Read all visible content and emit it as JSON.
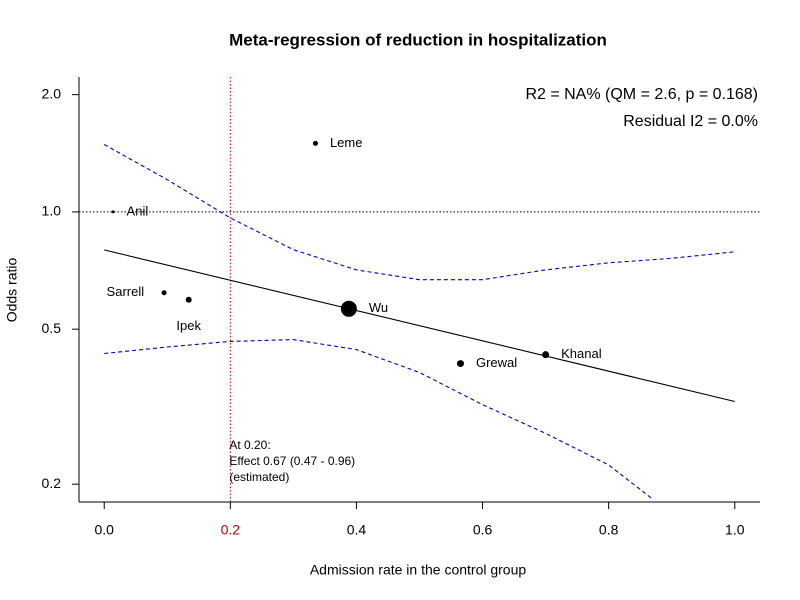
{
  "chart_data": {
    "type": "scatter",
    "title": "Meta-regression of reduction in hospitalization",
    "x_label": "Admission rate in the control group",
    "y_label": "Odds ratio",
    "log_y": true,
    "xlim": [
      -0.04,
      1.04
    ],
    "ylim": [
      0.18,
      2.22
    ],
    "xticks": [
      {
        "value": 0,
        "label": "0.0"
      },
      0.2,
      0.4,
      0.6,
      0.8,
      {
        "value": 1,
        "label": "1.0"
      }
    ],
    "yticks": [
      0.2,
      0.5,
      {
        "value": 1,
        "label": "1.0"
      },
      {
        "value": 2,
        "label": "2.0"
      }
    ],
    "highlight_xtick": 0.2,
    "highlight_color": "#cc0000",
    "points": {
      "labels": [
        "Leme",
        "Anil",
        "Sarrell",
        "Ipek",
        "Wu",
        "Grewal",
        "Khanal"
      ],
      "x": [
        0.335,
        0.014,
        0.095,
        0.134,
        0.388,
        0.565,
        0.7
      ],
      "values": [
        1.5,
        1.0,
        0.62,
        0.595,
        0.564,
        0.408,
        0.43
      ],
      "sizes": [
        2.5,
        1.5,
        2.5,
        3,
        8,
        3.5,
        3.5
      ],
      "label_side": [
        "right",
        "right",
        "left",
        "below",
        "right",
        "right",
        "right"
      ],
      "color": "#000000"
    },
    "fit": {
      "x": [
        0,
        1
      ],
      "values": [
        0.799,
        0.326
      ],
      "color": "#000000"
    },
    "ci_upper": {
      "x": [
        0,
        0.1,
        0.2,
        0.3,
        0.4,
        0.5,
        0.6,
        0.7,
        0.8,
        0.9,
        1.0
      ],
      "values": [
        1.49,
        1.21,
        0.965,
        0.8,
        0.71,
        0.67,
        0.67,
        0.71,
        0.74,
        0.76,
        0.79
      ],
      "color": "#0000cc"
    },
    "ci_lower": {
      "x": [
        0,
        0.1,
        0.2,
        0.3,
        0.4,
        0.5,
        0.6,
        0.7,
        0.8,
        0.87
      ],
      "values": [
        0.433,
        0.45,
        0.465,
        0.47,
        0.443,
        0.387,
        0.32,
        0.27,
        0.224,
        0.183
      ],
      "color": "#0000cc"
    },
    "hline": 1.0,
    "vline": 0.2,
    "vline_color": "#cc0000",
    "stats": [
      "R2 = NA% (QM = 2.6, p = 0.168)",
      "Residual I2 = 0.0%"
    ],
    "annotation": [
      "At 0.20:",
      "Effect 0.67 (0.47 - 0.96)",
      "(estimated)"
    ]
  }
}
